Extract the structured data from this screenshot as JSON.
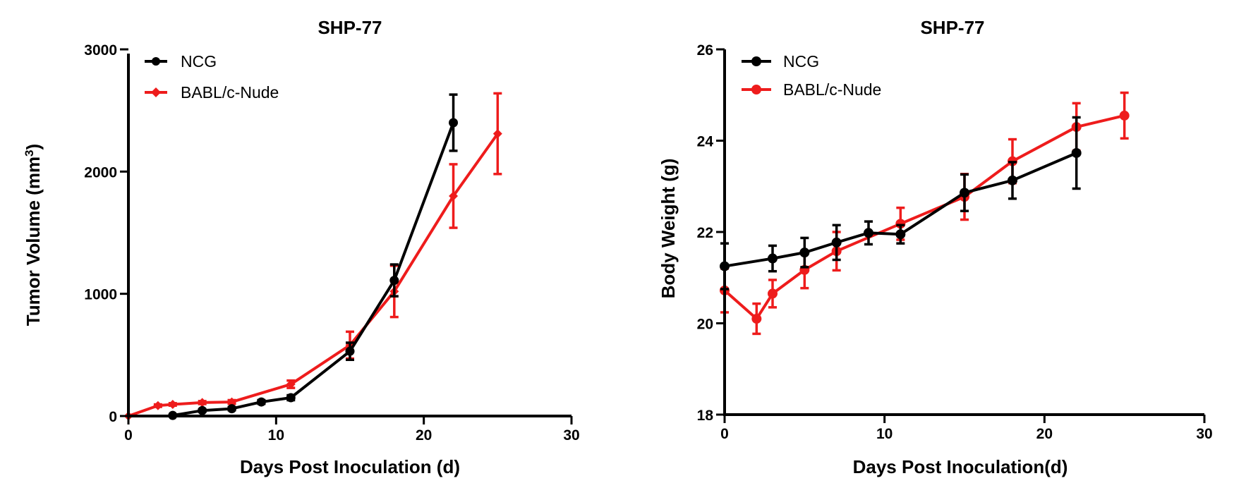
{
  "chart_data": [
    {
      "type": "line",
      "title": "SHP-77",
      "xlabel": "Days Post Inoculation (d)",
      "ylabel": "Tumor Volume (mm",
      "ylabel_sup": "3",
      "ylabel_close": ")",
      "xlim": [
        0,
        30
      ],
      "ylim": [
        0,
        3000
      ],
      "xticks": [
        0,
        10,
        20,
        30
      ],
      "yticks": [
        0,
        1000,
        2000,
        3000
      ],
      "grid": false,
      "legend_position": "top-left",
      "series": [
        {
          "name": "NCG",
          "color": "#000000",
          "marker": "circle",
          "x": [
            3,
            5,
            7,
            9,
            11,
            15,
            18,
            22
          ],
          "y": [
            5,
            45,
            60,
            115,
            150,
            530,
            1110,
            2400
          ],
          "err": [
            0,
            10,
            12,
            15,
            20,
            70,
            130,
            230
          ]
        },
        {
          "name": "BABL/c-Nude",
          "color": "#ee1c1c",
          "marker": "diamond",
          "x": [
            0,
            2,
            3,
            5,
            7,
            11,
            15,
            18,
            22,
            25
          ],
          "y": [
            0,
            85,
            95,
            110,
            115,
            260,
            580,
            1020,
            1800,
            2310
          ],
          "err": [
            0,
            10,
            10,
            12,
            15,
            30,
            110,
            210,
            260,
            330
          ]
        }
      ]
    },
    {
      "type": "line",
      "title": "SHP-77",
      "xlabel": "Days Post Inoculation(d)",
      "ylabel": "Body Weight (g)",
      "xlim": [
        0,
        30
      ],
      "ylim": [
        18,
        26
      ],
      "xticks": [
        0,
        10,
        20,
        30
      ],
      "yticks": [
        18,
        20,
        22,
        24,
        26
      ],
      "grid": false,
      "legend_position": "top-left",
      "series": [
        {
          "name": "NCG",
          "color": "#000000",
          "marker": "circle",
          "x": [
            0,
            3,
            5,
            7,
            9,
            11,
            15,
            18,
            22
          ],
          "y": [
            21.25,
            21.42,
            21.55,
            21.77,
            21.98,
            21.95,
            22.86,
            23.13,
            23.73
          ],
          "err": [
            0.5,
            0.28,
            0.32,
            0.38,
            0.25,
            0.2,
            0.4,
            0.4,
            0.78
          ]
        },
        {
          "name": "BABL/c-Nude",
          "color": "#ee1c1c",
          "marker": "circle",
          "x": [
            0,
            2,
            3,
            5,
            7,
            11,
            15,
            18,
            22,
            25
          ],
          "y": [
            20.72,
            20.1,
            20.65,
            21.17,
            21.58,
            22.18,
            22.77,
            23.55,
            24.3,
            24.55
          ],
          "err": [
            0.48,
            0.33,
            0.3,
            0.4,
            0.42,
            0.35,
            0.5,
            0.48,
            0.52,
            0.5
          ]
        }
      ]
    }
  ]
}
